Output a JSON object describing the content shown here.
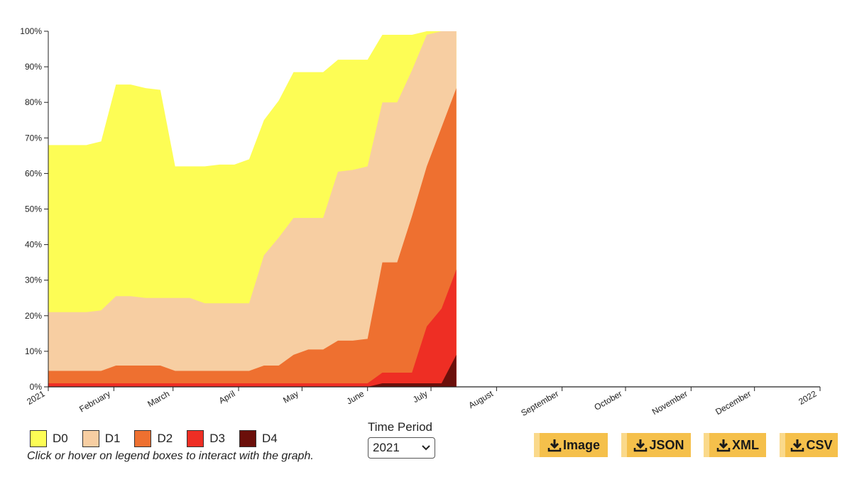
{
  "chart_data": {
    "type": "area",
    "stacked": true,
    "x": [
      "2021-01-05",
      "2021-01-12",
      "2021-01-19",
      "2021-01-26",
      "2021-02-02",
      "2021-02-09",
      "2021-02-16",
      "2021-02-23",
      "2021-03-02",
      "2021-03-09",
      "2021-03-16",
      "2021-03-23",
      "2021-03-30",
      "2021-04-06",
      "2021-04-13",
      "2021-04-20",
      "2021-04-27",
      "2021-05-04",
      "2021-05-11",
      "2021-05-18",
      "2021-05-25",
      "2021-06-01",
      "2021-06-08",
      "2021-06-15",
      "2021-06-22",
      "2021-06-29",
      "2021-07-06",
      "2021-07-13"
    ],
    "series": [
      {
        "name": "D4",
        "color": "#6b0f0a",
        "values": [
          0,
          0,
          0,
          0,
          0,
          0,
          0,
          0,
          0,
          0,
          0,
          0,
          0,
          0,
          0,
          0,
          0,
          0,
          0,
          0,
          0,
          0,
          1,
          1,
          1,
          1,
          1,
          9
        ]
      },
      {
        "name": "D3",
        "color": "#ee2e24",
        "values": [
          1,
          1,
          1,
          1,
          1,
          1,
          1,
          1,
          1,
          1,
          1,
          1,
          1,
          1,
          1,
          1,
          1,
          1,
          1,
          1,
          1,
          1,
          4,
          4,
          4,
          17,
          22,
          33
        ]
      },
      {
        "name": "D2",
        "color": "#ee7030",
        "values": [
          4.5,
          4.5,
          4.5,
          4.5,
          6,
          6,
          6,
          6,
          4.5,
          4.5,
          4.5,
          4.5,
          4.5,
          4.5,
          6,
          6,
          9,
          10.5,
          10.5,
          13,
          13,
          13.5,
          35,
          35,
          48,
          62,
          73,
          84
        ]
      },
      {
        "name": "D1",
        "color": "#f7ceA2",
        "values": [
          21,
          21,
          21,
          21.5,
          25.5,
          25.5,
          25,
          25,
          25,
          25,
          23.5,
          23.5,
          23.5,
          23.5,
          37,
          42,
          47.5,
          47.5,
          47.5,
          60.5,
          61,
          62,
          80,
          80,
          89,
          99,
          100,
          100
        ]
      },
      {
        "name": "D0",
        "color": "#fdfd55",
        "values": [
          68,
          68,
          68,
          69,
          85,
          85,
          84,
          83.5,
          62,
          62,
          62,
          62.5,
          62.5,
          64,
          75,
          80.5,
          88.5,
          88.5,
          88.5,
          92,
          92,
          92,
          99,
          99,
          99,
          100,
          100,
          100
        ]
      }
    ],
    "y_tick_labels": [
      "0%",
      "10%",
      "20%",
      "30%",
      "40%",
      "50%",
      "60%",
      "70%",
      "80%",
      "90%",
      "100%"
    ],
    "x_tick_labels": [
      "2021",
      "February",
      "March",
      "April",
      "May",
      "June",
      "July",
      "August",
      "September",
      "October",
      "November",
      "December",
      "2022"
    ],
    "x_tick_dates": [
      "2021-01-01",
      "2021-02-01",
      "2021-03-01",
      "2021-04-01",
      "2021-05-01",
      "2021-06-01",
      "2021-07-01",
      "2021-08-01",
      "2021-09-01",
      "2021-10-01",
      "2021-11-01",
      "2021-12-01",
      "2022-01-01"
    ],
    "xlim": [
      "2021-01-01",
      "2022-01-01"
    ],
    "ylim": [
      0,
      100
    ],
    "legend_position": "bottom-left",
    "grid": false
  },
  "legend": {
    "items": [
      {
        "label": "D0",
        "color": "#fdfd55"
      },
      {
        "label": "D1",
        "color": "#f7cea2"
      },
      {
        "label": "D2",
        "color": "#ee7030"
      },
      {
        "label": "D3",
        "color": "#ee2e24"
      },
      {
        "label": "D4",
        "color": "#6b0f0a"
      }
    ],
    "hint": "Click or hover on legend boxes to interact with the graph."
  },
  "period": {
    "label": "Time Period",
    "selected": "2021",
    "chevron_icon": "chevron-down-icon"
  },
  "downloads": {
    "image_label": "Image",
    "json_label": "JSON",
    "xml_label": "XML",
    "csv_label": "CSV",
    "icon": "download-icon"
  }
}
